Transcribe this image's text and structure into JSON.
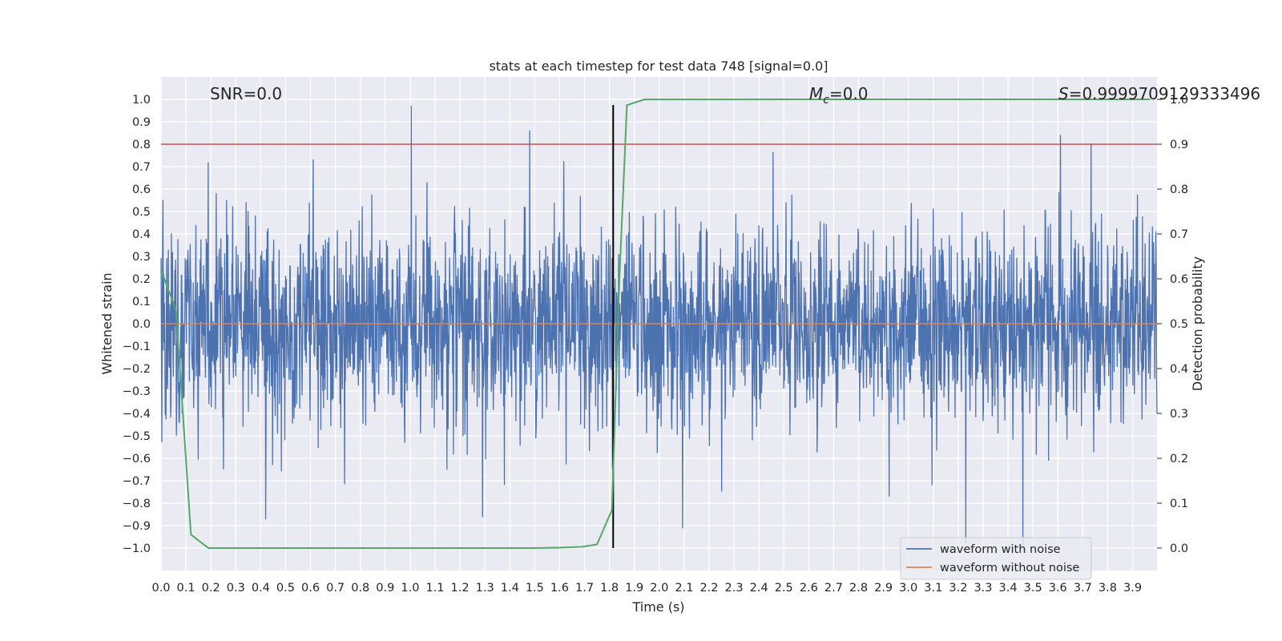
{
  "chart_data": {
    "type": "line",
    "title": "stats at each timestep for test data 748 [signal=0.0]",
    "xlabel": "Time (s)",
    "ylabel": "Whitened strain",
    "y2label": "Detection probability",
    "xlim": [
      0.0,
      3.998
    ],
    "ylim": [
      -1.1,
      1.1
    ],
    "y2lim": [
      -0.05,
      1.05
    ],
    "x_ticks": [
      "0.0",
      "0.1",
      "0.2",
      "0.3",
      "0.4",
      "0.5",
      "0.6",
      "0.7",
      "0.8",
      "0.9",
      "1.0",
      "1.1",
      "1.2",
      "1.3",
      "1.4",
      "1.5",
      "1.6",
      "1.7",
      "1.8",
      "1.9",
      "2.0",
      "2.1",
      "2.2",
      "2.3",
      "2.4",
      "2.5",
      "2.6",
      "2.7",
      "2.8",
      "2.9",
      "3.0",
      "3.1",
      "3.2",
      "3.3",
      "3.4",
      "3.5",
      "3.6",
      "3.7",
      "3.8",
      "3.9"
    ],
    "y_ticks": [
      "1.0",
      "0.9",
      "0.8",
      "0.7",
      "0.6",
      "0.5",
      "0.4",
      "0.3",
      "0.2",
      "0.1",
      "0.0",
      "−0.1",
      "−0.2",
      "−0.3",
      "−0.4",
      "−0.5",
      "−0.6",
      "−0.7",
      "−0.8",
      "−0.9",
      "−1.0"
    ],
    "y_tick_values": [
      1.0,
      0.9,
      0.8,
      0.7,
      0.6,
      0.5,
      0.4,
      0.3,
      0.2,
      0.1,
      0.0,
      -0.1,
      -0.2,
      -0.3,
      -0.4,
      -0.5,
      -0.6,
      -0.7,
      -0.8,
      -0.9,
      -1.0
    ],
    "y2_ticks": [
      "1.0",
      "0.9",
      "0.8",
      "0.7",
      "0.6",
      "0.5",
      "0.4",
      "0.3",
      "0.2",
      "0.1",
      "0.0"
    ],
    "y2_tick_values": [
      1.0,
      0.9,
      0.8,
      0.7,
      0.6,
      0.5,
      0.4,
      0.3,
      0.2,
      0.1,
      0.0
    ],
    "annotations": {
      "snr": "SNR=0.0",
      "mc_symbol": "M",
      "mc_sub": "c",
      "mc_value": "=0.0",
      "s_symbol": "S",
      "s_value": "=0.9999709129333496"
    },
    "series": [
      {
        "name": "waveform with noise",
        "color": "#4c72b0",
        "description": "dense random noise trace",
        "amplitude_range": [
          -0.99,
          0.97
        ],
        "peaks": [
          [
            1.005,
            0.97
          ],
          [
            1.48,
            0.86
          ],
          [
            3.61,
            0.84
          ],
          [
            0.42,
            -0.87
          ],
          [
            1.29,
            -0.86
          ],
          [
            3.46,
            -0.99
          ],
          [
            3.23,
            -0.98
          ]
        ]
      },
      {
        "name": "waveform without noise",
        "color": "#dd8452",
        "value": 0.0
      },
      {
        "name": "detection probability",
        "color": "#55a868",
        "axis": "right",
        "x": [
          0.0,
          0.06,
          0.12,
          0.19,
          0.5,
          1.0,
          1.5,
          1.6,
          1.69,
          1.75,
          1.81,
          1.84,
          1.87,
          1.94,
          2.5,
          3.0,
          3.5,
          3.97
        ],
        "y": [
          0.62,
          0.53,
          0.03,
          0.0,
          0.0,
          0.0,
          0.0,
          0.001,
          0.003,
          0.008,
          0.085,
          0.6,
          0.987,
          0.9997,
          0.99997,
          0.99997,
          0.99997,
          0.99997
        ]
      }
    ],
    "threshold": {
      "color": "#c44e52",
      "value": 0.9
    },
    "vline": {
      "color": "#000000",
      "x": 1.815
    },
    "legend": {
      "placement": "lower-right",
      "entries": [
        "waveform with noise",
        "waveform without noise"
      ]
    }
  },
  "colors": {
    "plot_bg": "#eaeaf2",
    "grid": "#ffffff",
    "text": "#262626",
    "noise": "#4c72b0",
    "clean": "#dd8452",
    "prob": "#55a868",
    "threshold": "#c44e52"
  }
}
